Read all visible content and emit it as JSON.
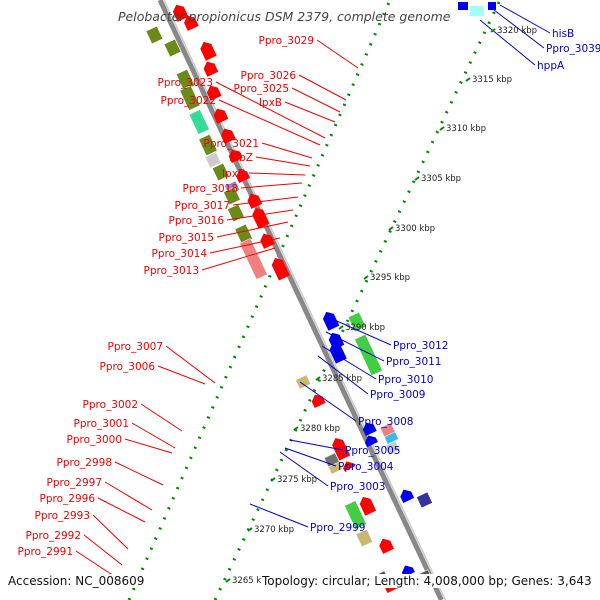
{
  "title": "Pelobacter propionicus DSM 2379, complete genome",
  "footer": {
    "accession": "Accession: NC_008609",
    "summary": "Topology: circular; Length: 4,008,000 bp; Genes: 3,643"
  },
  "colors": {
    "left_label": "#ee0000",
    "right_label": "#0000cc",
    "tick": "#008800",
    "backbone": "#888888"
  },
  "kbp_ticks": [
    "3320 kbp",
    "3315 kbp",
    "3310 kbp",
    "3305 kbp",
    "3300 kbp",
    "3295 kbp",
    "3290 kbp",
    "3285 kbp",
    "3280 kbp",
    "3275 kbp",
    "3270 kbp",
    "3265 kbp"
  ],
  "left_labels": [
    "Ppro_3029",
    "Ppro_3026",
    "Ppro_3025",
    "lpxB",
    "Ppro_3023",
    "Ppro_3022",
    "Ppro_3021",
    "fabZ",
    "lpxD",
    "Ppro_3018",
    "Ppro_3017",
    "Ppro_3016",
    "Ppro_3015",
    "Ppro_3014",
    "Ppro_3013",
    "Ppro_3007",
    "Ppro_3006",
    "Ppro_3002",
    "Ppro_3001",
    "Ppro_3000",
    "Ppro_2998",
    "Ppro_2997",
    "Ppro_2996",
    "Ppro_2993",
    "Ppro_2992",
    "Ppro_2991"
  ],
  "right_labels": [
    "hisB",
    "Ppro_3039",
    "hppA",
    "Ppro_3012",
    "Ppro_3011",
    "Ppro_3010",
    "Ppro_3009",
    "Ppro_3008",
    "Ppro_3005",
    "Ppro_3004",
    "Ppro_3003",
    "Ppro_2999"
  ]
}
